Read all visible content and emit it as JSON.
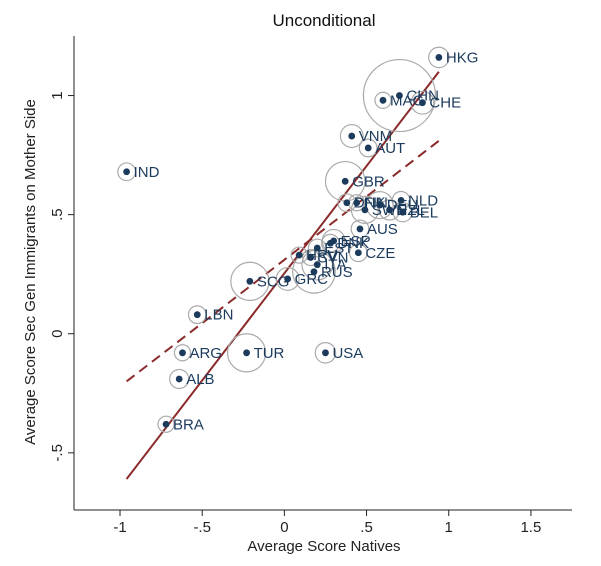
{
  "chart_data": {
    "type": "scatter",
    "title": "Unconditional",
    "xlabel": "Average Score Natives",
    "ylabel": "Average Score Sec Gen Immigrants on Mother Side",
    "xlim": [
      -1.28,
      1.75
    ],
    "ylim": [
      -0.74,
      1.25
    ],
    "xticks": [
      -1,
      -0.5,
      0,
      0.5,
      1,
      1.5
    ],
    "xtick_labels": [
      "-1",
      "-.5",
      "0",
      ".5",
      "1",
      "1.5"
    ],
    "yticks": [
      -0.5,
      0,
      0.5,
      1
    ],
    "ytick_labels": [
      "-.5",
      "0",
      ".5",
      "1"
    ],
    "colors": {
      "dot": "#1b3a5c",
      "ring": "#aaaaaa",
      "label": "#1b3a5c",
      "fit_line": "#8b2a2a",
      "axis": "#222222"
    },
    "points": [
      {
        "label": "HKG",
        "x": 0.94,
        "y": 1.16,
        "weight": 0.08
      },
      {
        "label": "CHN",
        "x": 0.7,
        "y": 1.0,
        "weight": 1.0
      },
      {
        "label": "MAC",
        "x": 0.6,
        "y": 0.98,
        "weight": 0.05
      },
      {
        "label": "CHE",
        "x": 0.84,
        "y": 0.97,
        "weight": 0.1
      },
      {
        "label": "VNM",
        "x": 0.41,
        "y": 0.83,
        "weight": 0.1
      },
      {
        "label": "AUT",
        "x": 0.51,
        "y": 0.78,
        "weight": 0.06
      },
      {
        "label": "IND",
        "x": -0.96,
        "y": 0.68,
        "weight": 0.06
      },
      {
        "label": "GBR",
        "x": 0.37,
        "y": 0.64,
        "weight": 0.3
      },
      {
        "label": "NLD",
        "x": 0.71,
        "y": 0.56,
        "weight": 0.06
      },
      {
        "label": "DNK",
        "x": 0.38,
        "y": 0.55,
        "weight": 0.06
      },
      {
        "label": "FIN",
        "x": 0.44,
        "y": 0.55,
        "weight": 0.05
      },
      {
        "label": "DEU",
        "x": 0.58,
        "y": 0.54,
        "weight": 0.14
      },
      {
        "label": "NZL",
        "x": 0.64,
        "y": 0.52,
        "weight": 0.08
      },
      {
        "label": "BEL",
        "x": 0.72,
        "y": 0.51,
        "weight": 0.07
      },
      {
        "label": "SWE",
        "x": 0.49,
        "y": 0.52,
        "weight": 0.14
      },
      {
        "label": "AUS",
        "x": 0.46,
        "y": 0.44,
        "weight": 0.06
      },
      {
        "label": "ESP",
        "x": 0.3,
        "y": 0.39,
        "weight": 0.1
      },
      {
        "label": "DNK",
        "x": 0.28,
        "y": 0.38,
        "weight": 0.06
      },
      {
        "label": "EST",
        "x": 0.2,
        "y": 0.36,
        "weight": 0.06
      },
      {
        "label": "CZE",
        "x": 0.45,
        "y": 0.34,
        "weight": 0.06
      },
      {
        "label": "HRV",
        "x": 0.09,
        "y": 0.33,
        "weight": 0.05
      },
      {
        "label": "SVN",
        "x": 0.16,
        "y": 0.32,
        "weight": 0.05
      },
      {
        "label": "ITA",
        "x": 0.2,
        "y": 0.29,
        "weight": 0.18
      },
      {
        "label": "RUS",
        "x": 0.18,
        "y": 0.26,
        "weight": 0.35
      },
      {
        "label": "GRC",
        "x": 0.02,
        "y": 0.23,
        "weight": 0.1
      },
      {
        "label": "SCG",
        "x": -0.21,
        "y": 0.22,
        "weight": 0.28
      },
      {
        "label": "LBN",
        "x": -0.53,
        "y": 0.08,
        "weight": 0.06
      },
      {
        "label": "ARG",
        "x": -0.62,
        "y": -0.08,
        "weight": 0.05
      },
      {
        "label": "TUR",
        "x": -0.23,
        "y": -0.08,
        "weight": 0.28
      },
      {
        "label": "USA",
        "x": 0.25,
        "y": -0.08,
        "weight": 0.08
      },
      {
        "label": "ALB",
        "x": -0.64,
        "y": -0.19,
        "weight": 0.07
      },
      {
        "label": "BRA",
        "x": -0.72,
        "y": -0.38,
        "weight": 0.05
      }
    ],
    "fit_lines": [
      {
        "name": "solid-fit",
        "style": "solid",
        "x": [
          -0.96,
          0.94
        ],
        "y": [
          -0.61,
          1.1
        ]
      },
      {
        "name": "dashed-fit",
        "style": "dashed",
        "x": [
          -0.96,
          0.94
        ],
        "y": [
          -0.2,
          0.81
        ]
      }
    ]
  }
}
